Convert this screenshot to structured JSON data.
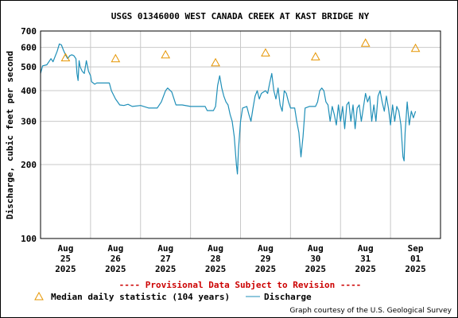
{
  "chart_data": {
    "type": "line",
    "title": "USGS 01346000 WEST CANADA CREEK AT KAST BRIDGE NY",
    "ylabel": "Discharge, cubic feet per second",
    "yscale": "log",
    "ylim": [
      100,
      700
    ],
    "yticks": [
      {
        "value": 100,
        "label": "100"
      },
      {
        "value": 200,
        "label": "200"
      },
      {
        "value": 300,
        "label": "300"
      },
      {
        "value": 400,
        "label": "400"
      },
      {
        "value": 500,
        "label": "500"
      },
      {
        "value": 600,
        "label": "600"
      },
      {
        "value": 700,
        "label": "700"
      }
    ],
    "xlim": [
      "2025-08-24 12:00",
      "2025-09-01 12:00"
    ],
    "xticks": [
      {
        "value": "2025-08-25",
        "label": [
          "Aug",
          "25",
          "2025"
        ]
      },
      {
        "value": "2025-08-26",
        "label": [
          "Aug",
          "26",
          "2025"
        ]
      },
      {
        "value": "2025-08-27",
        "label": [
          "Aug",
          "27",
          "2025"
        ]
      },
      {
        "value": "2025-08-28",
        "label": [
          "Aug",
          "28",
          "2025"
        ]
      },
      {
        "value": "2025-08-29",
        "label": [
          "Aug",
          "29",
          "2025"
        ]
      },
      {
        "value": "2025-08-30",
        "label": [
          "Aug",
          "30",
          "2025"
        ]
      },
      {
        "value": "2025-08-31",
        "label": [
          "Aug",
          "31",
          "2025"
        ]
      },
      {
        "value": "2025-09-01",
        "label": [
          "Sep",
          "01",
          "2025"
        ]
      }
    ],
    "grid": true,
    "series": [
      {
        "name": "Median daily statistic (104 years)",
        "marker": "triangle",
        "color": "#e69500",
        "points": [
          {
            "x": "2025-08-25",
            "y": 545
          },
          {
            "x": "2025-08-26",
            "y": 540
          },
          {
            "x": "2025-08-27",
            "y": 560
          },
          {
            "x": "2025-08-28",
            "y": 520
          },
          {
            "x": "2025-08-29",
            "y": 570
          },
          {
            "x": "2025-08-30",
            "y": 550
          },
          {
            "x": "2025-08-31",
            "y": 625
          },
          {
            "x": "2025-09-01",
            "y": 595
          }
        ]
      },
      {
        "name": "Discharge",
        "marker": "none",
        "color": "#1f8fb8",
        "points": [
          {
            "x": "2025-08-24 12:00",
            "y": 470
          },
          {
            "x": "2025-08-24 13:00",
            "y": 505
          },
          {
            "x": "2025-08-24 15:00",
            "y": 510
          },
          {
            "x": "2025-08-24 17:00",
            "y": 540
          },
          {
            "x": "2025-08-24 18:00",
            "y": 525
          },
          {
            "x": "2025-08-24 20:00",
            "y": 580
          },
          {
            "x": "2025-08-24 21:00",
            "y": 620
          },
          {
            "x": "2025-08-24 22:00",
            "y": 615
          },
          {
            "x": "2025-08-24 23:00",
            "y": 585
          },
          {
            "x": "2025-08-25 00:00",
            "y": 560
          },
          {
            "x": "2025-08-25 01:00",
            "y": 540
          },
          {
            "x": "2025-08-25 02:00",
            "y": 555
          },
          {
            "x": "2025-08-25 03:00",
            "y": 560
          },
          {
            "x": "2025-08-25 04:00",
            "y": 555
          },
          {
            "x": "2025-08-25 05:00",
            "y": 540
          },
          {
            "x": "2025-08-25 05:30",
            "y": 470
          },
          {
            "x": "2025-08-25 06:00",
            "y": 440
          },
          {
            "x": "2025-08-25 06:30",
            "y": 530
          },
          {
            "x": "2025-08-25 07:00",
            "y": 500
          },
          {
            "x": "2025-08-25 08:00",
            "y": 480
          },
          {
            "x": "2025-08-25 09:00",
            "y": 470
          },
          {
            "x": "2025-08-25 10:00",
            "y": 530
          },
          {
            "x": "2025-08-25 11:00",
            "y": 480
          },
          {
            "x": "2025-08-25 12:00",
            "y": 460
          },
          {
            "x": "2025-08-25 12:30",
            "y": 435
          },
          {
            "x": "2025-08-25 14:00",
            "y": 425
          },
          {
            "x": "2025-08-25 15:00",
            "y": 430
          },
          {
            "x": "2025-08-25 18:00",
            "y": 430
          },
          {
            "x": "2025-08-25 21:00",
            "y": 430
          },
          {
            "x": "2025-08-25 22:00",
            "y": 400
          },
          {
            "x": "2025-08-26 00:00",
            "y": 370
          },
          {
            "x": "2025-08-26 02:00",
            "y": 350
          },
          {
            "x": "2025-08-26 04:00",
            "y": 348
          },
          {
            "x": "2025-08-26 06:00",
            "y": 352
          },
          {
            "x": "2025-08-26 08:00",
            "y": 345
          },
          {
            "x": "2025-08-26 12:00",
            "y": 348
          },
          {
            "x": "2025-08-26 16:00",
            "y": 340
          },
          {
            "x": "2025-08-26 20:00",
            "y": 340
          },
          {
            "x": "2025-08-26 22:00",
            "y": 360
          },
          {
            "x": "2025-08-27 00:00",
            "y": 400
          },
          {
            "x": "2025-08-27 01:00",
            "y": 410
          },
          {
            "x": "2025-08-27 03:00",
            "y": 395
          },
          {
            "x": "2025-08-27 05:00",
            "y": 350
          },
          {
            "x": "2025-08-27 08:00",
            "y": 350
          },
          {
            "x": "2025-08-27 12:00",
            "y": 345
          },
          {
            "x": "2025-08-27 16:00",
            "y": 345
          },
          {
            "x": "2025-08-27 19:00",
            "y": 345
          },
          {
            "x": "2025-08-27 20:00",
            "y": 332
          },
          {
            "x": "2025-08-27 23:00",
            "y": 332
          },
          {
            "x": "2025-08-28 00:00",
            "y": 345
          },
          {
            "x": "2025-08-28 01:00",
            "y": 420
          },
          {
            "x": "2025-08-28 02:00",
            "y": 460
          },
          {
            "x": "2025-08-28 03:00",
            "y": 410
          },
          {
            "x": "2025-08-28 04:00",
            "y": 380
          },
          {
            "x": "2025-08-28 05:00",
            "y": 360
          },
          {
            "x": "2025-08-28 06:00",
            "y": 350
          },
          {
            "x": "2025-08-28 07:00",
            "y": 320
          },
          {
            "x": "2025-08-28 08:00",
            "y": 300
          },
          {
            "x": "2025-08-28 09:00",
            "y": 260
          },
          {
            "x": "2025-08-28 10:00",
            "y": 200
          },
          {
            "x": "2025-08-28 10:30",
            "y": 183
          },
          {
            "x": "2025-08-28 11:00",
            "y": 230
          },
          {
            "x": "2025-08-28 12:00",
            "y": 300
          },
          {
            "x": "2025-08-28 13:00",
            "y": 340
          },
          {
            "x": "2025-08-28 15:00",
            "y": 345
          },
          {
            "x": "2025-08-28 16:00",
            "y": 320
          },
          {
            "x": "2025-08-28 17:00",
            "y": 300
          },
          {
            "x": "2025-08-28 18:00",
            "y": 340
          },
          {
            "x": "2025-08-28 19:00",
            "y": 380
          },
          {
            "x": "2025-08-28 20:00",
            "y": 400
          },
          {
            "x": "2025-08-28 21:00",
            "y": 370
          },
          {
            "x": "2025-08-28 22:00",
            "y": 390
          },
          {
            "x": "2025-08-29 00:00",
            "y": 400
          },
          {
            "x": "2025-08-29 01:00",
            "y": 390
          },
          {
            "x": "2025-08-29 02:00",
            "y": 430
          },
          {
            "x": "2025-08-29 03:00",
            "y": 470
          },
          {
            "x": "2025-08-29 04:00",
            "y": 400
          },
          {
            "x": "2025-08-29 05:00",
            "y": 370
          },
          {
            "x": "2025-08-29 06:00",
            "y": 410
          },
          {
            "x": "2025-08-29 07:00",
            "y": 350
          },
          {
            "x": "2025-08-29 08:00",
            "y": 330
          },
          {
            "x": "2025-08-29 09:00",
            "y": 400
          },
          {
            "x": "2025-08-29 10:00",
            "y": 390
          },
          {
            "x": "2025-08-29 11:00",
            "y": 360
          },
          {
            "x": "2025-08-29 12:00",
            "y": 340
          },
          {
            "x": "2025-08-29 14:00",
            "y": 340
          },
          {
            "x": "2025-08-29 15:00",
            "y": 300
          },
          {
            "x": "2025-08-29 16:00",
            "y": 270
          },
          {
            "x": "2025-08-29 17:00",
            "y": 215
          },
          {
            "x": "2025-08-29 18:00",
            "y": 260
          },
          {
            "x": "2025-08-29 19:00",
            "y": 340
          },
          {
            "x": "2025-08-29 21:00",
            "y": 345
          },
          {
            "x": "2025-08-29 23:00",
            "y": 345
          },
          {
            "x": "2025-08-30 00:00",
            "y": 345
          },
          {
            "x": "2025-08-30 01:00",
            "y": 360
          },
          {
            "x": "2025-08-30 02:00",
            "y": 400
          },
          {
            "x": "2025-08-30 03:00",
            "y": 410
          },
          {
            "x": "2025-08-30 04:00",
            "y": 400
          },
          {
            "x": "2025-08-30 05:00",
            "y": 360
          },
          {
            "x": "2025-08-30 06:00",
            "y": 350
          },
          {
            "x": "2025-08-30 07:00",
            "y": 300
          },
          {
            "x": "2025-08-30 08:00",
            "y": 345
          },
          {
            "x": "2025-08-30 09:00",
            "y": 320
          },
          {
            "x": "2025-08-30 10:00",
            "y": 290
          },
          {
            "x": "2025-08-30 11:00",
            "y": 350
          },
          {
            "x": "2025-08-30 12:00",
            "y": 300
          },
          {
            "x": "2025-08-30 13:00",
            "y": 345
          },
          {
            "x": "2025-08-30 14:00",
            "y": 280
          },
          {
            "x": "2025-08-30 15:00",
            "y": 350
          },
          {
            "x": "2025-08-30 16:00",
            "y": 360
          },
          {
            "x": "2025-08-30 17:00",
            "y": 300
          },
          {
            "x": "2025-08-30 18:00",
            "y": 350
          },
          {
            "x": "2025-08-30 19:00",
            "y": 280
          },
          {
            "x": "2025-08-30 20:00",
            "y": 340
          },
          {
            "x": "2025-08-30 21:00",
            "y": 350
          },
          {
            "x": "2025-08-30 22:00",
            "y": 300
          },
          {
            "x": "2025-08-31 00:00",
            "y": 390
          },
          {
            "x": "2025-08-31 01:00",
            "y": 360
          },
          {
            "x": "2025-08-31 02:00",
            "y": 380
          },
          {
            "x": "2025-08-31 03:00",
            "y": 300
          },
          {
            "x": "2025-08-31 04:00",
            "y": 350
          },
          {
            "x": "2025-08-31 05:00",
            "y": 300
          },
          {
            "x": "2025-08-31 06:00",
            "y": 380
          },
          {
            "x": "2025-08-31 07:00",
            "y": 400
          },
          {
            "x": "2025-08-31 08:00",
            "y": 360
          },
          {
            "x": "2025-08-31 09:00",
            "y": 330
          },
          {
            "x": "2025-08-31 10:00",
            "y": 380
          },
          {
            "x": "2025-08-31 11:00",
            "y": 340
          },
          {
            "x": "2025-08-31 12:00",
            "y": 290
          },
          {
            "x": "2025-08-31 13:00",
            "y": 350
          },
          {
            "x": "2025-08-31 14:00",
            "y": 300
          },
          {
            "x": "2025-08-31 15:00",
            "y": 345
          },
          {
            "x": "2025-08-31 16:00",
            "y": 330
          },
          {
            "x": "2025-08-31 17:00",
            "y": 290
          },
          {
            "x": "2025-08-31 18:00",
            "y": 215
          },
          {
            "x": "2025-08-31 18:30",
            "y": 207
          },
          {
            "x": "2025-08-31 19:00",
            "y": 270
          },
          {
            "x": "2025-08-31 20:00",
            "y": 360
          },
          {
            "x": "2025-08-31 21:00",
            "y": 290
          },
          {
            "x": "2025-08-31 22:00",
            "y": 330
          },
          {
            "x": "2025-08-31 23:00",
            "y": 310
          },
          {
            "x": "2025-09-01 00:00",
            "y": 330
          }
        ]
      }
    ],
    "provisional_note": "---- Provisional Data Subject to Revision ----",
    "credit": "Graph courtesy of the U.S. Geological Survey",
    "legend_placement": "bottom-left"
  }
}
